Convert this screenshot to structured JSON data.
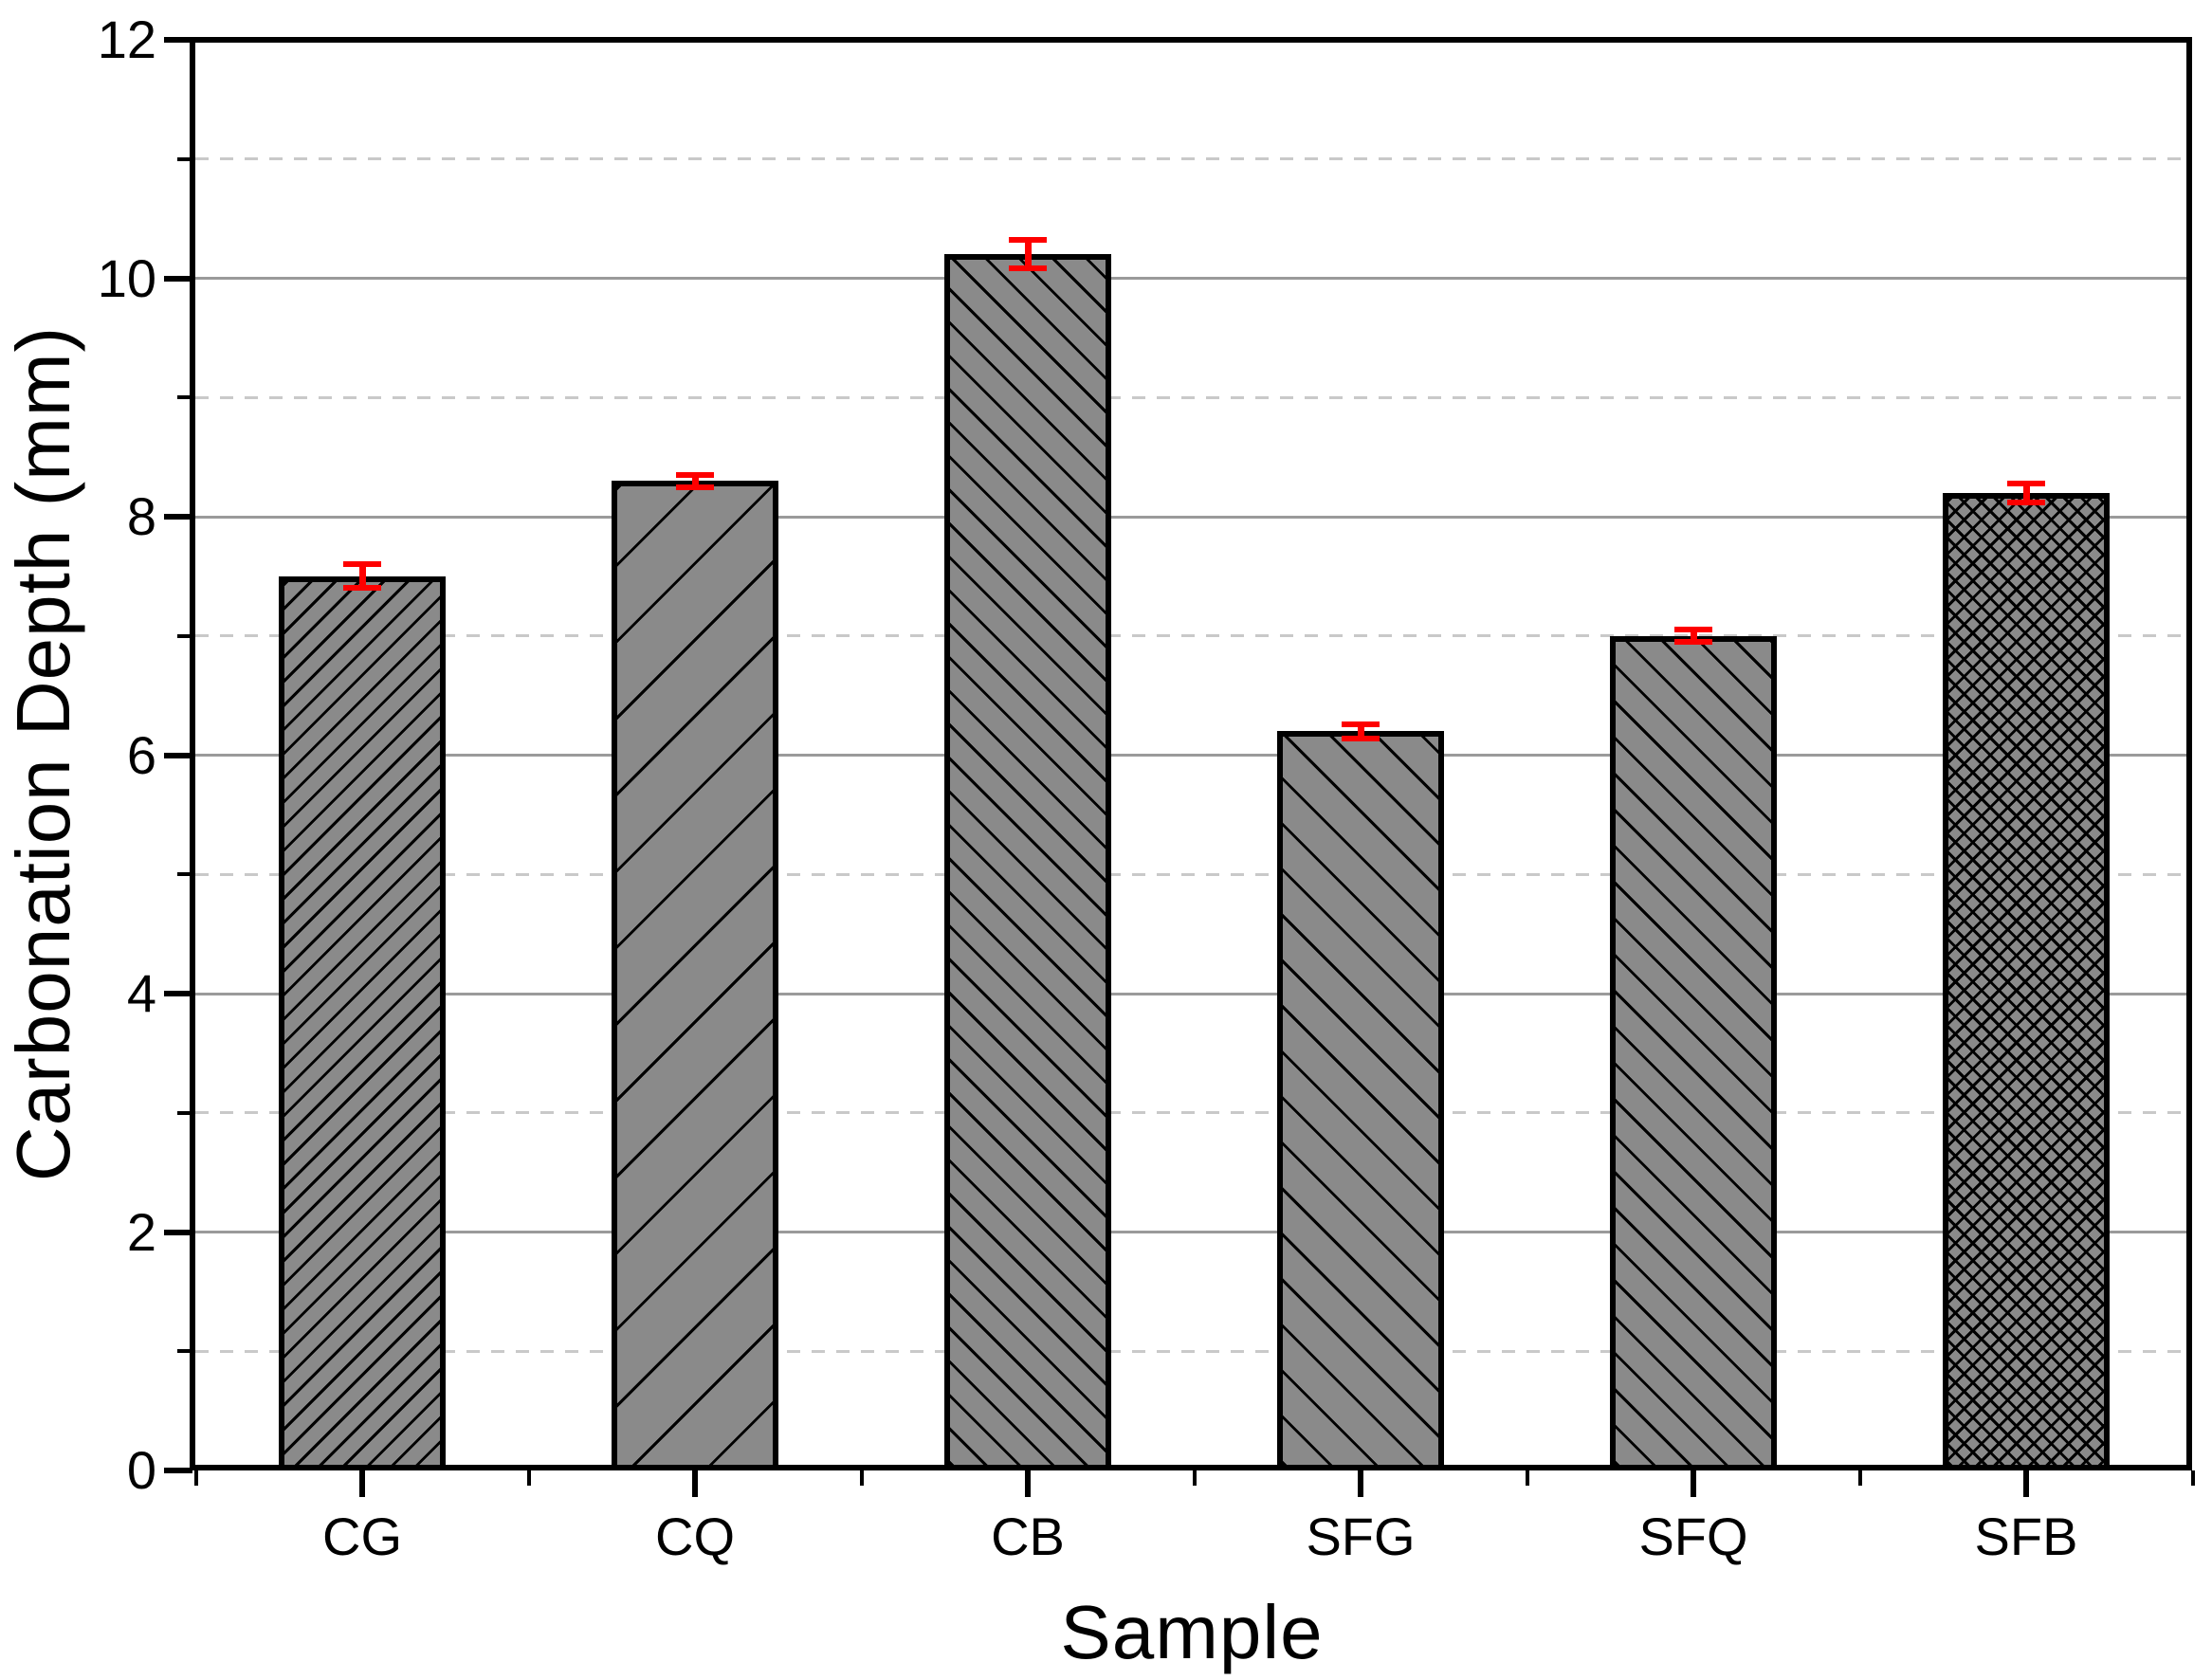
{
  "chart_data": {
    "type": "bar",
    "title": "",
    "xlabel": "Sample",
    "ylabel": "Carbonation Depth (mm)",
    "categories": [
      "CG",
      "CQ",
      "CB",
      "SFG",
      "SFQ",
      "SFB"
    ],
    "series": [
      {
        "name": "Carbonation depth",
        "values": [
          7.5,
          8.3,
          10.2,
          6.2,
          7.0,
          8.2
        ],
        "errors": [
          0.1,
          0.05,
          0.12,
          0.06,
          0.05,
          0.08
        ]
      }
    ],
    "ylim": [
      0,
      12
    ],
    "y_major_ticks": [
      0,
      2,
      4,
      6,
      8,
      10,
      12
    ],
    "y_minor_ticks": [
      1,
      3,
      5,
      7,
      9,
      11
    ],
    "grid": {
      "orientation": "horizontal",
      "major_style": "solid",
      "minor_style": "dashed"
    },
    "legend": "none",
    "bar_patterns": [
      {
        "category": "CG",
        "hatch": "diagonal-up",
        "spacing": 18
      },
      {
        "category": "CQ",
        "hatch": "diagonal-up",
        "spacing": 57
      },
      {
        "category": "CB",
        "hatch": "diagonal-down",
        "spacing": 25
      },
      {
        "category": "SFG",
        "hatch": "diagonal-down",
        "spacing": 34
      },
      {
        "category": "SFQ",
        "hatch": "diagonal-down",
        "spacing": 27
      },
      {
        "category": "SFB",
        "hatch": "cross-diagonal",
        "spacing": 13
      }
    ],
    "colors": {
      "background": "#ffffff",
      "axis": "#000000",
      "text": "#000000",
      "bar_fill": "#8a8a8a",
      "bar_edge": "#000000",
      "hatch": "#000000",
      "error_bar": "#fe0000",
      "grid_major": "#9a9a9a",
      "grid_minor": "#c9c9c9"
    }
  }
}
